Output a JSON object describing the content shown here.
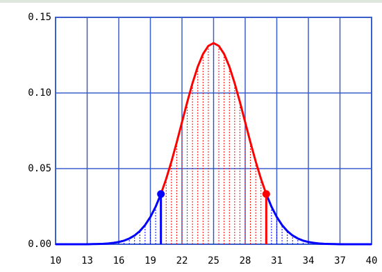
{
  "chart_data": {
    "type": "line",
    "x": [
      10,
      10.5,
      11,
      11.5,
      12,
      12.5,
      13,
      13.5,
      14,
      14.5,
      15,
      15.5,
      16,
      16.5,
      17,
      17.5,
      18,
      18.5,
      19,
      19.5,
      20,
      20.5,
      21,
      21.5,
      22,
      22.5,
      23,
      23.5,
      24,
      24.5,
      25,
      25.5,
      26,
      26.5,
      27,
      27.5,
      28,
      28.5,
      29,
      29.5,
      30,
      30.5,
      31,
      31.5,
      32,
      32.5,
      33,
      33.5,
      34,
      34.5,
      35,
      35.5,
      36,
      36.5,
      37,
      37.5,
      38,
      38.5,
      39,
      39.5,
      40
    ],
    "values": [
      0,
      0,
      0,
      0,
      0,
      0,
      0,
      0.0001,
      0.0002,
      0.0003,
      0.0005,
      0.0009,
      0.0015,
      0.0024,
      0.0038,
      0.0058,
      0.0087,
      0.0127,
      0.018,
      0.0248,
      0.0332,
      0.0432,
      0.0547,
      0.0673,
      0.0807,
      0.094,
      0.1065,
      0.1174,
      0.1258,
      0.1311,
      0.133,
      0.1311,
      0.1258,
      0.1174,
      0.1065,
      0.094,
      0.0807,
      0.0673,
      0.0547,
      0.0432,
      0.0332,
      0.0248,
      0.018,
      0.0127,
      0.0087,
      0.0058,
      0.0038,
      0.0024,
      0.0015,
      0.0009,
      0.0005,
      0.0003,
      0.0002,
      0.0001,
      0,
      0,
      0,
      0,
      0,
      0,
      0
    ],
    "color": "#0000ff",
    "region": {
      "from": 20,
      "to": 30,
      "color": "#ff0000"
    },
    "xlim": [
      10,
      40
    ],
    "ylim": [
      0,
      0.15
    ],
    "xticks": [
      10,
      13,
      16,
      19,
      22,
      25,
      28,
      31,
      34,
      37,
      40
    ],
    "yticks": [
      {
        "value": 0,
        "label": "0.00"
      },
      {
        "value": 0.05,
        "label": "0.05"
      },
      {
        "value": 0.1,
        "label": "0.10"
      },
      {
        "value": 0.15,
        "label": "0.15"
      }
    ],
    "grid": true,
    "grid_color": "#3a5fcd"
  }
}
